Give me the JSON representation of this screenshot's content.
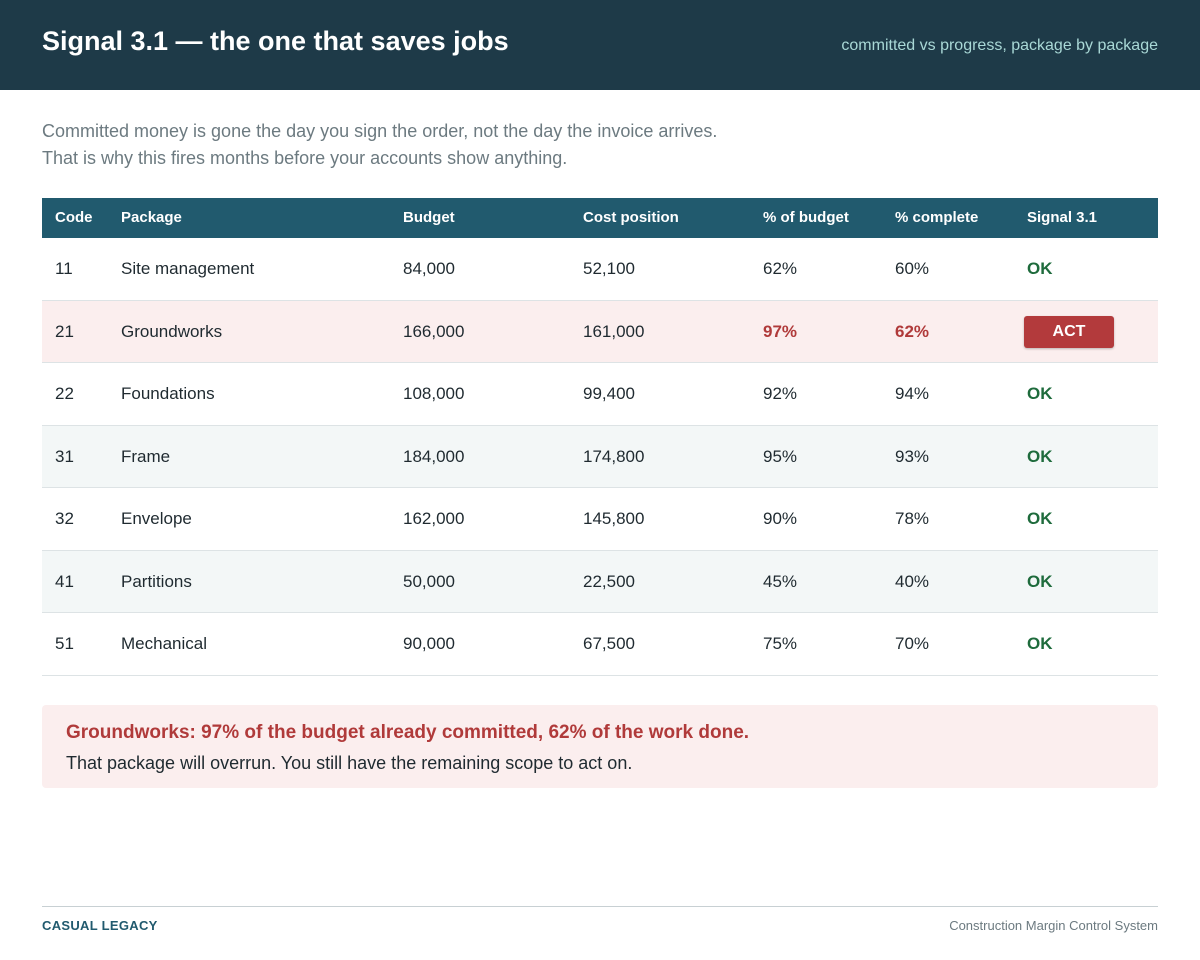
{
  "header": {
    "title": "Signal 3.1 — the one that saves jobs",
    "subtitle": "committed vs progress, package by package"
  },
  "intro": {
    "line1": "Committed money is gone the day you sign the order, not the day the invoice arrives.",
    "line2": "That is why this fires months before your accounts show anything."
  },
  "table": {
    "headers": [
      "Code",
      "Package",
      "Budget",
      "Cost position",
      "% of budget",
      "% complete",
      "Signal 3.1"
    ],
    "rows": [
      {
        "code": "11",
        "package": "Site management",
        "budget": "84,000",
        "cost": "52,100",
        "pct_budget": "62%",
        "pct_complete": "60%",
        "signal": "OK"
      },
      {
        "code": "21",
        "package": "Groundworks",
        "budget": "166,000",
        "cost": "161,000",
        "pct_budget": "97%",
        "pct_complete": "62%",
        "signal": "ACT"
      },
      {
        "code": "22",
        "package": "Foundations",
        "budget": "108,000",
        "cost": "99,400",
        "pct_budget": "92%",
        "pct_complete": "94%",
        "signal": "OK"
      },
      {
        "code": "31",
        "package": "Frame",
        "budget": "184,000",
        "cost": "174,800",
        "pct_budget": "95%",
        "pct_complete": "93%",
        "signal": "OK"
      },
      {
        "code": "32",
        "package": "Envelope",
        "budget": "162,000",
        "cost": "145,800",
        "pct_budget": "90%",
        "pct_complete": "78%",
        "signal": "OK"
      },
      {
        "code": "41",
        "package": "Partitions",
        "budget": "50,000",
        "cost": "22,500",
        "pct_budget": "45%",
        "pct_complete": "40%",
        "signal": "OK"
      },
      {
        "code": "51",
        "package": "Mechanical",
        "budget": "90,000",
        "cost": "67,500",
        "pct_budget": "75%",
        "pct_complete": "70%",
        "signal": "OK"
      }
    ]
  },
  "callout": {
    "title": "Groundworks: 97% of the budget already committed, 62% of the work done.",
    "text": "That package will overrun. You still have the remaining scope to act on."
  },
  "footer": {
    "brand": "CASUAL LEGACY",
    "system": "Construction Margin Control System"
  },
  "colors": {
    "header_bg": "#1e3a48",
    "table_header_bg": "#215a6e",
    "ok": "#1e6b3c",
    "act": "#b33a3c",
    "flag_row_bg": "#fbeeee"
  }
}
